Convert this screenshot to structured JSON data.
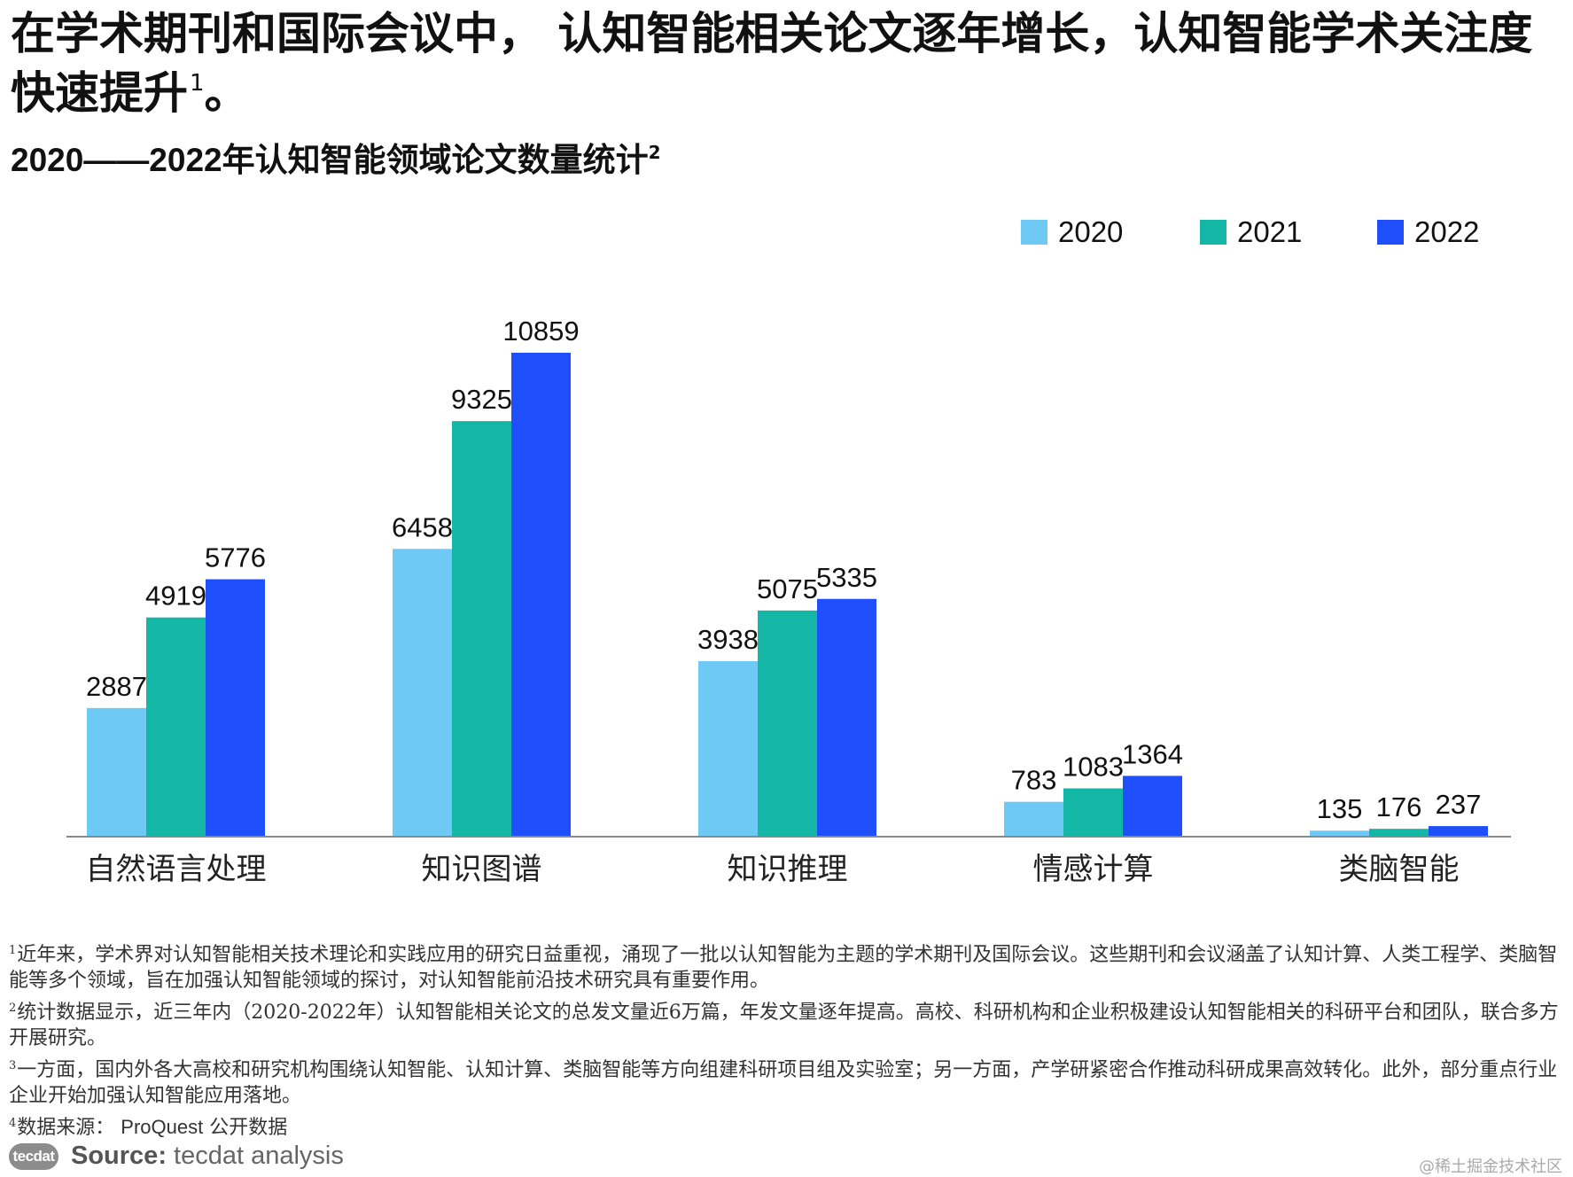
{
  "headline": {
    "text": "在学术期刊和国际会议中， 认知智能相关论文逐年增长，认知智能学术关注度快速提升",
    "sup": "1",
    "end": "。"
  },
  "subtitle": {
    "years": "2020——2022",
    "text": "年认知智能领域论文数量统计",
    "sup": "2"
  },
  "chart_data": {
    "type": "bar",
    "title": "2020——2022年认知智能领域论文数量统计",
    "categories": [
      "自然语言处理",
      "知识图谱",
      "知识推理",
      "情感计算",
      "类脑智能"
    ],
    "series": [
      {
        "name": "2020",
        "color": "#6ecaf5",
        "values": [
          2887,
          6458,
          3938,
          783,
          135
        ]
      },
      {
        "name": "2021",
        "color": "#14b7a5",
        "values": [
          4919,
          9325,
          5075,
          1083,
          176
        ]
      },
      {
        "name": "2022",
        "color": "#1f4ffb",
        "values": [
          5776,
          10859,
          5335,
          1364,
          237
        ]
      }
    ],
    "xlabel": "",
    "ylabel": "",
    "ylim": [
      0,
      10859
    ],
    "grid": false,
    "legend": "top-right",
    "data_labels": true
  },
  "footnotes": [
    {
      "sup": "1",
      "text": "近年来，学术界对认知智能相关技术理论和实践应用的研究日益重视，涌现了一批以认知智能为主题的学术期刊及国际会议。这些期刊和会议涵盖了认知计算、人类工程学、类脑智能等多个领域，旨在加强认知智能领域的探讨，对认知智能前沿技术研究具有重要作用。"
    },
    {
      "sup": "2",
      "text": "统计数据显示，近三年内（2020-2022年）认知智能相关论文的总发文量近6万篇，年发文量逐年提高。高校、科研机构和企业积极建设认知智能相关的科研平台和团队，联合多方开展研究。"
    },
    {
      "sup": "3",
      "text": "一方面，国内外各大高校和研究机构围绕认知智能、认知计算、类脑智能等方向组建科研项目组及实验室；另一方面，产学研紧密合作推动科研成果高效转化。此外，部分重点行业企业开始加强认知智能应用落地。"
    },
    {
      "sup": "4",
      "prefix": "数据来源：",
      "source": "ProQuest",
      "suffix": "公开数据"
    }
  ],
  "source": {
    "logo": "tecdat",
    "label": "Source:",
    "text": "tecdat analysis"
  },
  "watermark": "@稀土掘金技术社区"
}
